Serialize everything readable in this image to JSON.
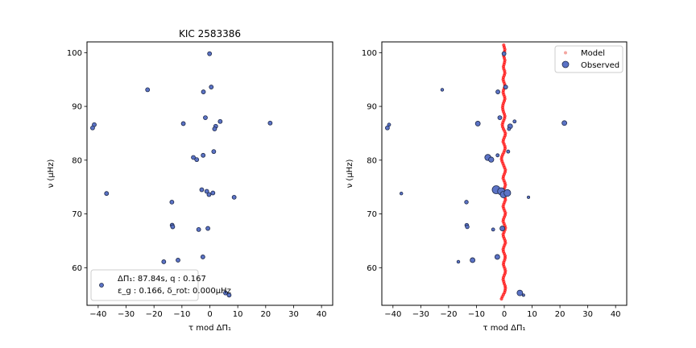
{
  "chart_data": [
    {
      "type": "scatter",
      "title": "KIC 2583386",
      "xlabel": "τ mod ΔΠ₁",
      "ylabel": "ν (μHz)",
      "xlim": [
        -44,
        44
      ],
      "ylim": [
        53,
        102
      ],
      "xticks": [
        -40,
        -30,
        -20,
        -10,
        0,
        10,
        20,
        30,
        40
      ],
      "yticks": [
        60,
        70,
        80,
        90,
        100
      ],
      "grid": false,
      "point_color": "#5b73c6",
      "annotation": {
        "line1": "ΔΠ₁: 87.84s, q :  0.167",
        "line2": "ε_g : 0.166, δ_rot: 0.000μHz",
        "placement": "lower-left"
      },
      "series": [
        {
          "points": [
            {
              "x": -0.1,
              "y": 99.8
            },
            {
              "x": -22.3,
              "y": 93.1
            },
            {
              "x": 0.5,
              "y": 93.6
            },
            {
              "x": -2.3,
              "y": 92.7
            },
            {
              "x": -41.4,
              "y": 86.6
            },
            {
              "x": -42.0,
              "y": 86.0
            },
            {
              "x": -9.5,
              "y": 86.8
            },
            {
              "x": -1.6,
              "y": 87.9
            },
            {
              "x": 3.7,
              "y": 87.2
            },
            {
              "x": 2.1,
              "y": 86.3
            },
            {
              "x": 1.7,
              "y": 85.8
            },
            {
              "x": 21.6,
              "y": 86.9
            },
            {
              "x": 1.4,
              "y": 81.6
            },
            {
              "x": -2.4,
              "y": 80.9
            },
            {
              "x": -5.9,
              "y": 80.5
            },
            {
              "x": -4.7,
              "y": 80.1
            },
            {
              "x": -37.0,
              "y": 73.8
            },
            {
              "x": -2.9,
              "y": 74.5
            },
            {
              "x": -1.1,
              "y": 74.2
            },
            {
              "x": -0.3,
              "y": 73.6
            },
            {
              "x": 1.1,
              "y": 73.9
            },
            {
              "x": 8.7,
              "y": 73.1
            },
            {
              "x": -13.6,
              "y": 72.2
            },
            {
              "x": -13.5,
              "y": 67.9
            },
            {
              "x": -13.3,
              "y": 67.6
            },
            {
              "x": -4.0,
              "y": 67.1
            },
            {
              "x": -0.7,
              "y": 67.3
            },
            {
              "x": -2.5,
              "y": 62.0
            },
            {
              "x": -16.5,
              "y": 61.1
            },
            {
              "x": -11.4,
              "y": 61.4
            },
            {
              "x": 5.6,
              "y": 55.3
            },
            {
              "x": 6.9,
              "y": 54.9
            }
          ]
        }
      ]
    },
    {
      "type": "scatter",
      "title": "",
      "xlabel": "τ mod ΔΠ₁",
      "ylabel": "ν (μHz)",
      "xlim": [
        -44,
        44
      ],
      "ylim": [
        53,
        102
      ],
      "xticks": [
        -40,
        -30,
        -20,
        -10,
        0,
        10,
        20,
        30,
        40
      ],
      "yticks": [
        60,
        70,
        80,
        90,
        100
      ],
      "grid": false,
      "legend_placement": "top-right",
      "series": [
        {
          "name": "Model",
          "color": "#ff0000",
          "legend_color": "#f4a6a0",
          "points": [
            {
              "x": -1.0,
              "y": 54.2
            },
            {
              "x": -0.7,
              "y": 54.6
            },
            {
              "x": -0.3,
              "y": 55.0
            },
            {
              "x": 0.1,
              "y": 55.4
            },
            {
              "x": 0.3,
              "y": 55.8
            },
            {
              "x": 0.4,
              "y": 56.2
            },
            {
              "x": 0.3,
              "y": 56.6
            },
            {
              "x": 0.0,
              "y": 57.0
            },
            {
              "x": -0.2,
              "y": 57.4
            },
            {
              "x": -0.4,
              "y": 57.8
            },
            {
              "x": -0.3,
              "y": 58.2
            },
            {
              "x": 0.0,
              "y": 58.6
            },
            {
              "x": 0.3,
              "y": 59.0
            },
            {
              "x": 0.4,
              "y": 59.4
            },
            {
              "x": 0.2,
              "y": 59.8
            },
            {
              "x": -0.1,
              "y": 60.2
            },
            {
              "x": -0.3,
              "y": 60.6
            },
            {
              "x": -0.2,
              "y": 61.0
            },
            {
              "x": 0.1,
              "y": 61.4
            },
            {
              "x": 0.3,
              "y": 61.8
            },
            {
              "x": 0.3,
              "y": 62.2
            },
            {
              "x": 0.0,
              "y": 62.6
            },
            {
              "x": -0.3,
              "y": 63.0
            },
            {
              "x": -0.4,
              "y": 63.4
            },
            {
              "x": -0.2,
              "y": 63.8
            },
            {
              "x": 0.1,
              "y": 64.2
            },
            {
              "x": 0.4,
              "y": 64.6
            },
            {
              "x": 0.3,
              "y": 65.0
            },
            {
              "x": 0.0,
              "y": 65.4
            },
            {
              "x": -0.3,
              "y": 65.8
            },
            {
              "x": -0.4,
              "y": 66.2
            },
            {
              "x": -0.1,
              "y": 66.6
            },
            {
              "x": 0.2,
              "y": 67.0
            },
            {
              "x": 0.4,
              "y": 67.4
            },
            {
              "x": 0.2,
              "y": 67.8
            },
            {
              "x": -0.1,
              "y": 68.2
            },
            {
              "x": -0.4,
              "y": 68.6
            },
            {
              "x": -0.3,
              "y": 69.0
            },
            {
              "x": 0.0,
              "y": 69.4
            },
            {
              "x": 0.3,
              "y": 69.8
            },
            {
              "x": 0.4,
              "y": 70.2
            },
            {
              "x": 0.1,
              "y": 70.6
            },
            {
              "x": -0.2,
              "y": 71.0
            },
            {
              "x": -0.4,
              "y": 71.4
            },
            {
              "x": -0.2,
              "y": 71.8
            },
            {
              "x": 0.1,
              "y": 72.2
            },
            {
              "x": 0.4,
              "y": 72.6
            },
            {
              "x": 0.3,
              "y": 73.0
            },
            {
              "x": 0.0,
              "y": 73.4
            },
            {
              "x": -0.3,
              "y": 73.8
            },
            {
              "x": -0.4,
              "y": 74.2
            },
            {
              "x": -0.1,
              "y": 74.6
            },
            {
              "x": 0.2,
              "y": 75.0
            },
            {
              "x": 0.4,
              "y": 75.4
            },
            {
              "x": 0.2,
              "y": 75.8
            },
            {
              "x": -0.1,
              "y": 76.2
            },
            {
              "x": -0.4,
              "y": 76.6
            },
            {
              "x": -0.3,
              "y": 77.0
            },
            {
              "x": 0.0,
              "y": 77.4
            },
            {
              "x": 0.3,
              "y": 77.8
            },
            {
              "x": 0.4,
              "y": 78.2
            },
            {
              "x": 0.1,
              "y": 78.6
            },
            {
              "x": -0.2,
              "y": 79.0
            },
            {
              "x": -0.5,
              "y": 79.4
            },
            {
              "x": -0.8,
              "y": 79.8
            },
            {
              "x": -1.0,
              "y": 80.2
            },
            {
              "x": -0.9,
              "y": 80.6
            },
            {
              "x": -0.6,
              "y": 81.0
            },
            {
              "x": -0.2,
              "y": 81.4
            },
            {
              "x": 0.1,
              "y": 81.8
            },
            {
              "x": 0.3,
              "y": 82.2
            },
            {
              "x": 0.2,
              "y": 82.6
            },
            {
              "x": -0.1,
              "y": 83.0
            },
            {
              "x": -0.4,
              "y": 83.4
            },
            {
              "x": -0.3,
              "y": 83.8
            },
            {
              "x": 0.0,
              "y": 84.2
            },
            {
              "x": 0.3,
              "y": 84.6
            },
            {
              "x": 0.4,
              "y": 85.0
            },
            {
              "x": 0.1,
              "y": 85.4
            },
            {
              "x": -0.3,
              "y": 85.8
            },
            {
              "x": -0.6,
              "y": 86.2
            },
            {
              "x": -0.7,
              "y": 86.6
            },
            {
              "x": -0.5,
              "y": 87.0
            },
            {
              "x": -0.2,
              "y": 87.4
            },
            {
              "x": 0.1,
              "y": 87.8
            },
            {
              "x": 0.2,
              "y": 88.2
            },
            {
              "x": 0.0,
              "y": 88.6
            },
            {
              "x": -0.3,
              "y": 89.0
            },
            {
              "x": -0.5,
              "y": 89.4
            },
            {
              "x": -0.6,
              "y": 89.8
            },
            {
              "x": -0.5,
              "y": 90.2
            },
            {
              "x": -0.3,
              "y": 90.6
            },
            {
              "x": 0.0,
              "y": 91.0
            },
            {
              "x": 0.2,
              "y": 91.4
            },
            {
              "x": 0.1,
              "y": 91.8
            },
            {
              "x": -0.2,
              "y": 92.2
            },
            {
              "x": -0.4,
              "y": 92.6
            },
            {
              "x": -0.3,
              "y": 93.0
            },
            {
              "x": 0.0,
              "y": 93.4
            },
            {
              "x": 0.2,
              "y": 93.8
            },
            {
              "x": 0.1,
              "y": 94.2
            },
            {
              "x": -0.2,
              "y": 94.6
            },
            {
              "x": -0.4,
              "y": 95.0
            },
            {
              "x": -0.3,
              "y": 95.4
            },
            {
              "x": 0.0,
              "y": 95.8
            },
            {
              "x": 0.2,
              "y": 96.2
            },
            {
              "x": 0.1,
              "y": 96.6
            },
            {
              "x": -0.2,
              "y": 97.0
            },
            {
              "x": -0.3,
              "y": 97.4
            },
            {
              "x": -0.1,
              "y": 97.8
            },
            {
              "x": 0.1,
              "y": 98.2
            },
            {
              "x": 0.2,
              "y": 98.6
            },
            {
              "x": 0.0,
              "y": 99.0
            },
            {
              "x": -0.2,
              "y": 99.4
            },
            {
              "x": -0.1,
              "y": 99.8
            },
            {
              "x": 0.1,
              "y": 100.2
            },
            {
              "x": 0.2,
              "y": 100.6
            },
            {
              "x": 0.0,
              "y": 101.0
            },
            {
              "x": -0.2,
              "y": 101.4
            }
          ]
        },
        {
          "name": "Observed",
          "color": "#5b73c6",
          "points": [
            {
              "x": -0.1,
              "y": 99.8,
              "s": 2.5
            },
            {
              "x": -22.3,
              "y": 93.1,
              "s": 1.8
            },
            {
              "x": 0.5,
              "y": 93.6,
              "s": 2.5
            },
            {
              "x": -2.3,
              "y": 92.7,
              "s": 2.5
            },
            {
              "x": -41.4,
              "y": 86.6,
              "s": 2.0
            },
            {
              "x": -42.0,
              "y": 86.0,
              "s": 2.5
            },
            {
              "x": -9.5,
              "y": 86.8,
              "s": 3.0
            },
            {
              "x": -1.6,
              "y": 87.9,
              "s": 2.5
            },
            {
              "x": 3.7,
              "y": 87.2,
              "s": 2.0
            },
            {
              "x": 2.1,
              "y": 86.3,
              "s": 3.0
            },
            {
              "x": 1.7,
              "y": 85.8,
              "s": 2.0
            },
            {
              "x": 21.6,
              "y": 86.9,
              "s": 3.0
            },
            {
              "x": 1.4,
              "y": 81.6,
              "s": 2.0
            },
            {
              "x": -2.4,
              "y": 80.9,
              "s": 2.0
            },
            {
              "x": -5.9,
              "y": 80.5,
              "s": 3.8
            },
            {
              "x": -4.7,
              "y": 80.1,
              "s": 3.2
            },
            {
              "x": -37.0,
              "y": 73.8,
              "s": 1.8
            },
            {
              "x": -2.9,
              "y": 74.5,
              "s": 5.0
            },
            {
              "x": -1.1,
              "y": 74.2,
              "s": 4.5
            },
            {
              "x": -0.3,
              "y": 73.6,
              "s": 4.0
            },
            {
              "x": 1.1,
              "y": 73.9,
              "s": 4.2
            },
            {
              "x": 8.7,
              "y": 73.1,
              "s": 1.6
            },
            {
              "x": -13.6,
              "y": 72.2,
              "s": 2.3
            },
            {
              "x": -13.5,
              "y": 67.9,
              "s": 2.3
            },
            {
              "x": -13.3,
              "y": 67.6,
              "s": 2.3
            },
            {
              "x": -4.0,
              "y": 67.1,
              "s": 2.0
            },
            {
              "x": -0.7,
              "y": 67.3,
              "s": 3.0
            },
            {
              "x": -2.5,
              "y": 62.0,
              "s": 3.0
            },
            {
              "x": -16.5,
              "y": 61.1,
              "s": 1.8
            },
            {
              "x": -11.4,
              "y": 61.4,
              "s": 3.0
            },
            {
              "x": 5.6,
              "y": 55.3,
              "s": 3.5
            },
            {
              "x": 6.9,
              "y": 54.9,
              "s": 1.6
            }
          ]
        }
      ]
    }
  ]
}
